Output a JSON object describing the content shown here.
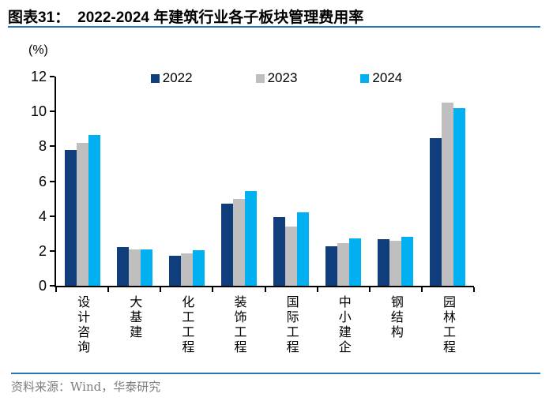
{
  "figure": {
    "number_label": "图表31：",
    "title": "2022-2024 年建筑行业各子板块管理费用率",
    "source_note": "资料来源：Wind，华泰研究"
  },
  "colors": {
    "series_2022": "#103d7c",
    "series_2023": "#bfbfbf",
    "series_2024": "#00b0f0",
    "rule_blue": "#2e75b6",
    "axis_black": "#000000",
    "source_gray": "#7d7d7d"
  },
  "chart_data": {
    "type": "bar",
    "title": "2022-2024 年建筑行业各子板块管理费用率",
    "unit_label": "(%)",
    "xlabel": "",
    "ylabel": "(%)",
    "categories": [
      "设计咨询",
      "大基建",
      "化工工程",
      "装饰工程",
      "国际工程",
      "中小建企",
      "钢结构",
      "园林工程"
    ],
    "series": [
      {
        "name": "2022",
        "color": "#103d7c",
        "values": [
          7.8,
          2.2,
          1.7,
          4.7,
          3.95,
          2.25,
          2.65,
          8.45
        ]
      },
      {
        "name": "2023",
        "color": "#bfbfbf",
        "values": [
          8.2,
          2.1,
          1.85,
          5.0,
          3.4,
          2.45,
          2.6,
          10.5
        ]
      },
      {
        "name": "2024",
        "color": "#00b0f0",
        "values": [
          8.65,
          2.1,
          2.05,
          5.45,
          4.2,
          2.7,
          2.8,
          10.2
        ]
      }
    ],
    "ylim": [
      0,
      12
    ],
    "yticks": [
      0,
      2,
      4,
      6,
      8,
      10,
      12
    ],
    "grid": false,
    "legend_position": "top"
  }
}
